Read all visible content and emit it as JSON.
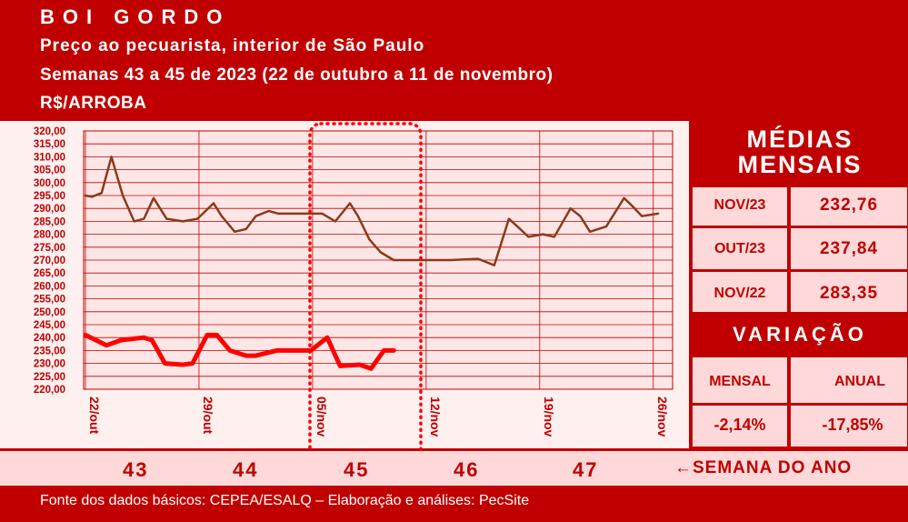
{
  "header": {
    "title": "BOI GORDO",
    "subtitle": "Preço ao pecuarista, interior de São Paulo",
    "period": "Semanas 43 a 45 de 2023 (22 de outubro a 11 de novembro)",
    "unit": "R$/ARROBA"
  },
  "chart_data": {
    "type": "line",
    "ylim": [
      220,
      320
    ],
    "y_ticks": [
      "320,00",
      "315,00",
      "310,00",
      "305,00",
      "300,00",
      "295,00",
      "290,00",
      "285,00",
      "280,00",
      "275,00",
      "270,00",
      "265,00",
      "260,00",
      "255,00",
      "250,00",
      "245,00",
      "240,00",
      "235,00",
      "230,00",
      "225,00",
      "220,00"
    ],
    "x_labels": [
      "22/out",
      "29/out",
      "05/nov",
      "12/nov",
      "19/nov",
      "26/nov"
    ],
    "grid": true,
    "highlighted_week": "45",
    "series": [
      {
        "color": "#8b3a1a",
        "points": [
          [
            0,
            295
          ],
          [
            0.4,
            294.5
          ],
          [
            1,
            296
          ],
          [
            1.6,
            310
          ],
          [
            2.3,
            295
          ],
          [
            3,
            285
          ],
          [
            3.6,
            286
          ],
          [
            4.2,
            294
          ],
          [
            5,
            286
          ],
          [
            6,
            285
          ],
          [
            6.9,
            286
          ],
          [
            7.9,
            292
          ],
          [
            8.4,
            287
          ],
          [
            9.2,
            281
          ],
          [
            9.9,
            282
          ],
          [
            10.5,
            287
          ],
          [
            11.3,
            289
          ],
          [
            11.9,
            288
          ],
          [
            12.5,
            288
          ],
          [
            13.5,
            288
          ],
          [
            14.6,
            288
          ],
          [
            15.4,
            285
          ],
          [
            16.3,
            292
          ],
          [
            16.8,
            287
          ],
          [
            17.5,
            278
          ],
          [
            18.2,
            273
          ],
          [
            19,
            270
          ],
          [
            21,
            270
          ],
          [
            22.5,
            270
          ],
          [
            24.2,
            270.5
          ],
          [
            25.2,
            268
          ],
          [
            26.1,
            286
          ],
          [
            26.8,
            282
          ],
          [
            27.3,
            279
          ],
          [
            28.2,
            280
          ],
          [
            28.9,
            279
          ],
          [
            29.9,
            290
          ],
          [
            30.5,
            287
          ],
          [
            31.1,
            281
          ],
          [
            32.1,
            283
          ],
          [
            33.2,
            294
          ],
          [
            33.7,
            291
          ],
          [
            34.3,
            287
          ],
          [
            35.3,
            288
          ]
        ]
      },
      {
        "color": "#ff0000",
        "points": [
          [
            0,
            241
          ],
          [
            1.3,
            237
          ],
          [
            2.2,
            239
          ],
          [
            3.6,
            240
          ],
          [
            4.1,
            239
          ],
          [
            4.9,
            230
          ],
          [
            6,
            229.5
          ],
          [
            6.6,
            230
          ],
          [
            7.5,
            241
          ],
          [
            8.1,
            241
          ],
          [
            8.9,
            235
          ],
          [
            9.9,
            233
          ],
          [
            10.5,
            233
          ],
          [
            11.8,
            235
          ],
          [
            12.5,
            235
          ],
          [
            13,
            235
          ],
          [
            13.9,
            235
          ],
          [
            14.9,
            240
          ],
          [
            15.7,
            229
          ],
          [
            16.9,
            229.5
          ],
          [
            17.6,
            228
          ],
          [
            18.4,
            235
          ],
          [
            19,
            235
          ]
        ]
      }
    ]
  },
  "panel": {
    "title_line1": "MÉDIAS",
    "title_line2": "MENSAIS",
    "rows": [
      {
        "label": "NOV/23",
        "value": "232,76"
      },
      {
        "label": "OUT/23",
        "value": "237,84"
      },
      {
        "label": "NOV/22",
        "value": "283,35"
      }
    ],
    "variation_title": "VARIAÇÃO",
    "mensal_label": "MENSAL",
    "anual_label": "ANUAL",
    "mensal_value": "-2,14%",
    "anual_value": "-17,85%"
  },
  "weeks": [
    "43",
    "44",
    "45",
    "46",
    "47"
  ],
  "weeks_label": "SEMANA DO ANO",
  "source": "Fonte dos dados básicos: CEPEA/ESALQ – Elaboração e análises: PecSite",
  "colors": {
    "background": "#c00000",
    "plot_bg": "#ffe6e6",
    "panel_bg": "#ffd9d9"
  }
}
